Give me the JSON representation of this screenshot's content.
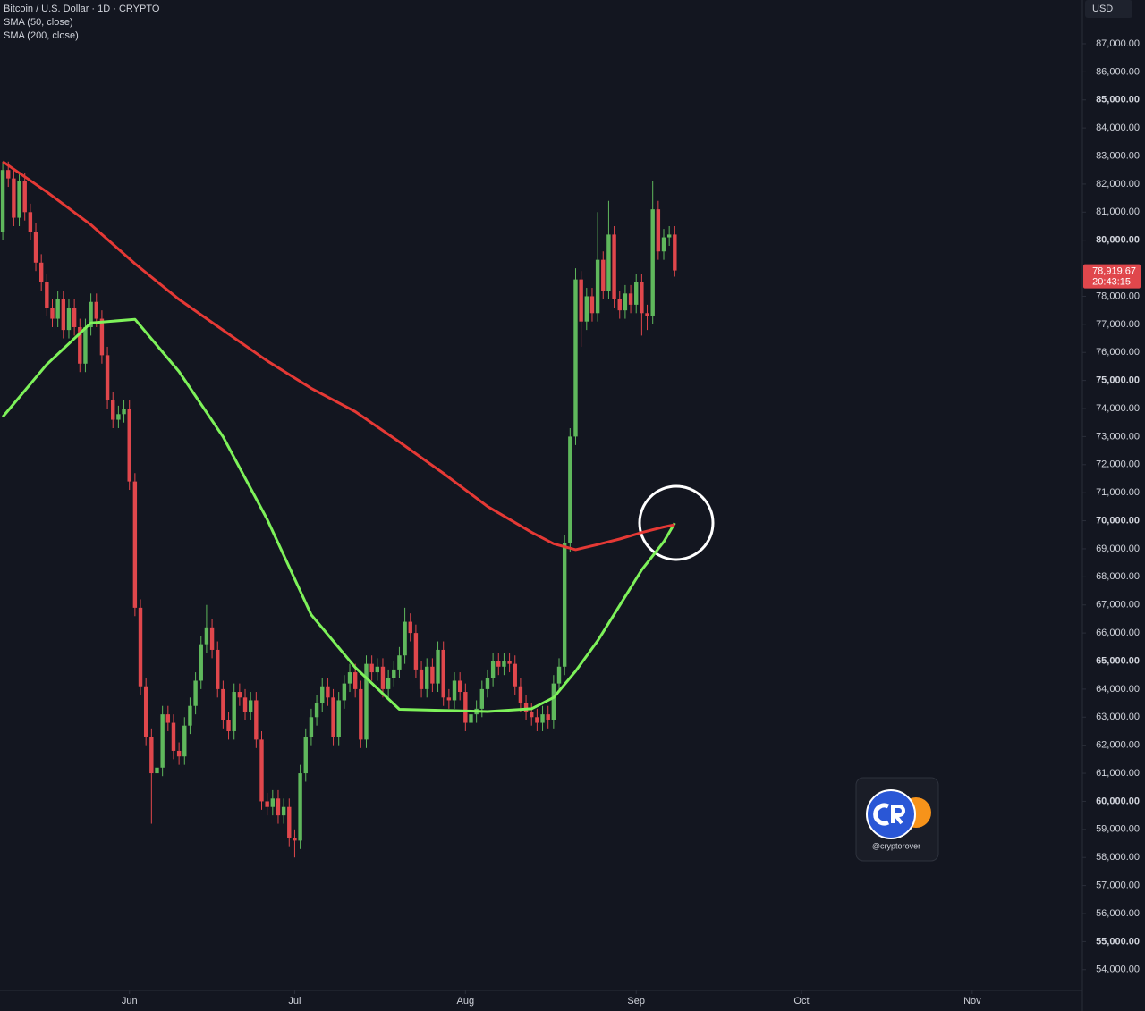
{
  "chart_data": {
    "type": "candlestick",
    "title": "Bitcoin / U.S. Dollar · 1D · CRYPTO",
    "currency": "USD",
    "last_price_label": "78,919.67",
    "countdown": "20:43:15",
    "watermark": "@cryptorover",
    "up_color": "#5fb85c",
    "down_color": "#e0474c",
    "xlim": [
      -0.5,
      196
    ],
    "xticks": [
      {
        "value": 23,
        "label": "Jun"
      },
      {
        "value": 53,
        "label": "Jul"
      },
      {
        "value": 84,
        "label": "Aug"
      },
      {
        "value": 115,
        "label": "Sep"
      },
      {
        "value": 145,
        "label": "Oct"
      },
      {
        "value": 176,
        "label": "Nov"
      }
    ],
    "ylim": [
      53260,
      88560
    ],
    "yticks": [
      {
        "value": 54000,
        "label": "54,000.00"
      },
      {
        "value": 55000,
        "label": "55,000.00"
      },
      {
        "value": 56000,
        "label": "56,000.00"
      },
      {
        "value": 57000,
        "label": "57,000.00"
      },
      {
        "value": 58000,
        "label": "58,000.00"
      },
      {
        "value": 59000,
        "label": "59,000.00"
      },
      {
        "value": 60000,
        "label": "60,000.00"
      },
      {
        "value": 61000,
        "label": "61,000.00"
      },
      {
        "value": 62000,
        "label": "62,000.00"
      },
      {
        "value": 63000,
        "label": "63,000.00"
      },
      {
        "value": 64000,
        "label": "64,000.00"
      },
      {
        "value": 65000,
        "label": "65,000.00"
      },
      {
        "value": 66000,
        "label": "66,000.00"
      },
      {
        "value": 67000,
        "label": "67,000.00"
      },
      {
        "value": 68000,
        "label": "68,000.00"
      },
      {
        "value": 69000,
        "label": "69,000.00"
      },
      {
        "value": 70000,
        "label": "70,000.00"
      },
      {
        "value": 71000,
        "label": "71,000.00"
      },
      {
        "value": 72000,
        "label": "72,000.00"
      },
      {
        "value": 73000,
        "label": "73,000.00"
      },
      {
        "value": 74000,
        "label": "74,000.00"
      },
      {
        "value": 75000,
        "label": "75,000.00"
      },
      {
        "value": 76000,
        "label": "76,000.00"
      },
      {
        "value": 77000,
        "label": "77,000.00"
      },
      {
        "value": 78000,
        "label": "78,000.00"
      },
      {
        "value": 80000,
        "label": "80,000.00"
      },
      {
        "value": 81000,
        "label": "81,000.00"
      },
      {
        "value": 82000,
        "label": "82,000.00"
      },
      {
        "value": 83000,
        "label": "83,000.00"
      },
      {
        "value": 84000,
        "label": "84,000.00"
      },
      {
        "value": 85000,
        "label": "85,000.00"
      },
      {
        "value": 86000,
        "label": "86,000.00"
      },
      {
        "value": 87000,
        "label": "87,000.00"
      }
    ],
    "x": [
      0,
      1,
      2,
      3,
      4,
      5,
      6,
      7,
      8,
      9,
      10,
      11,
      12,
      13,
      14,
      15,
      16,
      17,
      18,
      19,
      20,
      21,
      22,
      23,
      24,
      25,
      26,
      27,
      28,
      29,
      30,
      31,
      32,
      33,
      34,
      35,
      36,
      37,
      38,
      39,
      40,
      41,
      42,
      43,
      44,
      45,
      46,
      47,
      48,
      49,
      50,
      51,
      52,
      53,
      54,
      55,
      56,
      57,
      58,
      59,
      60,
      61,
      62,
      63,
      64,
      65,
      66,
      67,
      68,
      69,
      70,
      71,
      72,
      73,
      74,
      75,
      76,
      77,
      78,
      79,
      80,
      81,
      82,
      83,
      84,
      85,
      86,
      87,
      88,
      89,
      90,
      91,
      92,
      93,
      94,
      95,
      96,
      97,
      98,
      99,
      100,
      101,
      102,
      103,
      104,
      105,
      106,
      107,
      108,
      109,
      110,
      111,
      112,
      113,
      114,
      115,
      116,
      117,
      118,
      119,
      120,
      121,
      122
    ],
    "open": [
      80300,
      82500,
      82200,
      80800,
      82100,
      81000,
      80300,
      79200,
      78500,
      77600,
      77200,
      77900,
      76800,
      77600,
      76900,
      75600,
      76900,
      77800,
      77200,
      75900,
      74300,
      73600,
      73800,
      74000,
      71400,
      66900,
      64100,
      62300,
      61000,
      61200,
      63100,
      62800,
      61800,
      61600,
      62700,
      63400,
      64300,
      65600,
      66200,
      65400,
      64000,
      62900,
      62500,
      63900,
      63700,
      63200,
      63600,
      62200,
      60000,
      59800,
      60100,
      59500,
      59800,
      58700,
      58600,
      61000,
      62300,
      63000,
      63500,
      64100,
      63700,
      62300,
      63600,
      64200,
      64600,
      64000,
      62200,
      64900,
      64600,
      64800,
      64000,
      64400,
      64700,
      65200,
      66400,
      66000,
      64700,
      64000,
      64800,
      64200,
      65400,
      63700,
      63600,
      64300,
      63900,
      62800,
      63100,
      63300,
      64000,
      64400,
      65000,
      64800,
      65000,
      64900,
      64100,
      63500,
      63200,
      63000,
      62800,
      63100,
      62900,
      64200,
      64800,
      69200,
      73000,
      78600,
      77100,
      78000,
      77400,
      79300,
      78200,
      80200,
      77900,
      77500,
      78100,
      77700,
      78500,
      77400,
      77300,
      81100,
      79600,
      80100,
      80200
    ],
    "high": [
      82800,
      82800,
      82500,
      82400,
      82400,
      81300,
      80600,
      79500,
      78800,
      77900,
      78200,
      78200,
      77900,
      77900,
      77200,
      77200,
      78100,
      78100,
      77500,
      76200,
      74600,
      74100,
      74300,
      74300,
      71700,
      67200,
      64400,
      62600,
      61500,
      63400,
      63400,
      63100,
      62100,
      63000,
      63700,
      64600,
      65900,
      67000,
      66500,
      65700,
      64300,
      63200,
      64200,
      64200,
      64000,
      63900,
      63900,
      62500,
      60300,
      60400,
      60400,
      60100,
      60100,
      59000,
      61300,
      62600,
      63300,
      63800,
      64400,
      64400,
      64000,
      63900,
      64500,
      64900,
      64900,
      64300,
      65200,
      65200,
      65100,
      65100,
      64700,
      65000,
      65500,
      66900,
      66700,
      66300,
      65000,
      65100,
      65100,
      65700,
      65700,
      64000,
      64600,
      64600,
      64200,
      63400,
      63600,
      64300,
      64700,
      65300,
      65300,
      65300,
      65300,
      65200,
      64400,
      63800,
      63500,
      63300,
      63400,
      63400,
      64500,
      65100,
      69500,
      73300,
      79000,
      78900,
      78300,
      78300,
      81000,
      79600,
      81400,
      80500,
      78200,
      78400,
      78400,
      78800,
      78800,
      77700,
      82100,
      81400,
      80400,
      80500,
      80500
    ],
    "low": [
      80000,
      81900,
      80500,
      80500,
      80700,
      80000,
      78900,
      78200,
      77300,
      76900,
      76900,
      76500,
      76500,
      76600,
      75300,
      75300,
      76600,
      76900,
      75600,
      74000,
      73300,
      73300,
      73500,
      71100,
      66600,
      63800,
      62000,
      59200,
      59400,
      60900,
      62500,
      61500,
      61300,
      61300,
      62400,
      63100,
      64000,
      65300,
      65100,
      63700,
      62600,
      62200,
      62200,
      63400,
      62900,
      62900,
      61900,
      59700,
      59500,
      59500,
      59200,
      59200,
      58400,
      58000,
      58300,
      60700,
      62000,
      62700,
      63200,
      63400,
      62000,
      62000,
      63300,
      63900,
      63700,
      61900,
      61900,
      64300,
      64300,
      63700,
      63700,
      64100,
      64400,
      64900,
      65700,
      64400,
      63700,
      63700,
      63900,
      63900,
      63400,
      63300,
      63300,
      63600,
      62500,
      62500,
      62800,
      63000,
      63700,
      64100,
      64500,
      64500,
      64600,
      63800,
      63200,
      62900,
      62700,
      62500,
      62500,
      62600,
      62600,
      63900,
      64500,
      68900,
      72700,
      76200,
      76800,
      77100,
      77100,
      77900,
      77900,
      77600,
      77200,
      77200,
      77400,
      77400,
      76600,
      76800,
      77000,
      79300,
      79300,
      79800,
      78700
    ],
    "close": [
      82500,
      82200,
      80800,
      82100,
      81000,
      80300,
      79200,
      78500,
      77600,
      77200,
      77900,
      76800,
      77600,
      76900,
      75600,
      76900,
      77800,
      77200,
      75900,
      74300,
      73600,
      73800,
      74000,
      71400,
      66900,
      64100,
      62300,
      61000,
      61200,
      63100,
      62800,
      61800,
      61600,
      62700,
      63400,
      64300,
      65600,
      66200,
      65400,
      64000,
      62900,
      62500,
      63900,
      63700,
      63200,
      63600,
      62200,
      60000,
      59800,
      60100,
      59500,
      59800,
      58700,
      58600,
      61000,
      62300,
      63000,
      63500,
      64100,
      63700,
      62300,
      63600,
      64200,
      64600,
      64000,
      62200,
      64900,
      64600,
      64800,
      64000,
      64400,
      64700,
      65200,
      66400,
      66000,
      64700,
      64000,
      64800,
      64200,
      65400,
      63700,
      63600,
      64300,
      63900,
      62800,
      63100,
      63300,
      64000,
      64400,
      65000,
      64800,
      65000,
      64900,
      64100,
      63500,
      63200,
      63000,
      62800,
      63100,
      62900,
      64200,
      64800,
      69200,
      73000,
      78600,
      77100,
      78000,
      77400,
      79300,
      78200,
      80200,
      77900,
      77500,
      78100,
      77700,
      78500,
      77400,
      77300,
      81100,
      79600,
      80100,
      80200,
      78919.67
    ],
    "series": [
      {
        "name": "SMA (50, close)",
        "color": "#7ef25a",
        "x": [
          0,
          8,
          16,
          24,
          32,
          40,
          48,
          56,
          64,
          72,
          80,
          88,
          96,
          100,
          104,
          108,
          112,
          116,
          120,
          122
        ],
        "values": [
          73700,
          75570,
          77050,
          77180,
          75320,
          72990,
          70050,
          66650,
          64770,
          63280,
          63240,
          63200,
          63300,
          63700,
          64640,
          65720,
          66980,
          68250,
          69250,
          69920
        ]
      },
      {
        "name": "SMA (200, close)",
        "color": "#e53935",
        "x": [
          0,
          8,
          16,
          24,
          32,
          40,
          48,
          56,
          64,
          72,
          80,
          88,
          96,
          100,
          104,
          108,
          112,
          116,
          120,
          122
        ],
        "values": [
          82800,
          81720,
          80550,
          79160,
          77890,
          76790,
          75700,
          74720,
          73890,
          72810,
          71690,
          70510,
          69590,
          69180,
          68970,
          69150,
          69350,
          69580,
          69780,
          69860
        ]
      }
    ]
  }
}
